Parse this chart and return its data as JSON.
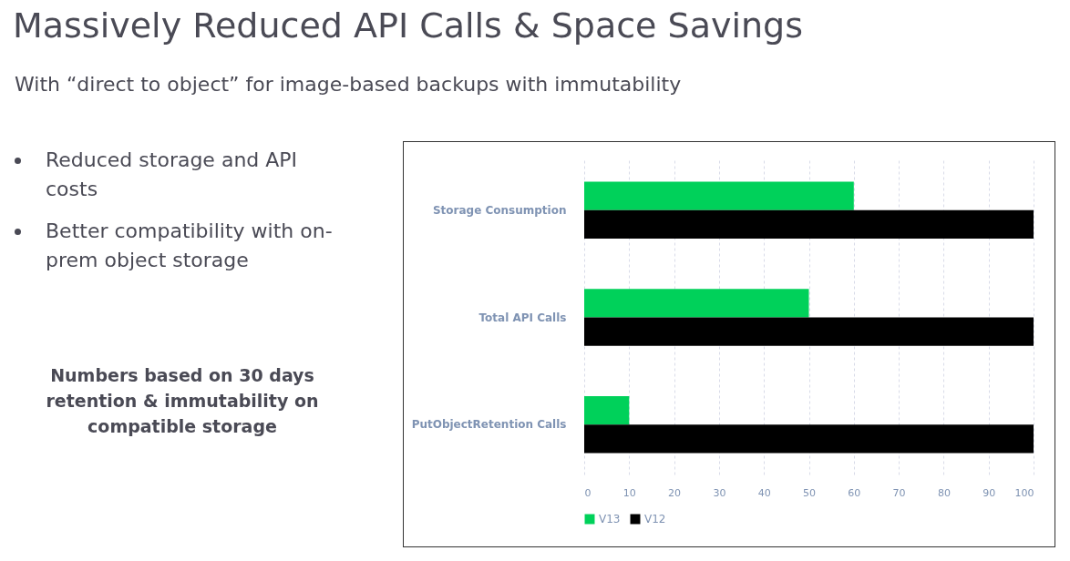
{
  "chart_data": {
    "type": "bar",
    "orientation": "horizontal",
    "title": "Massively Reduced API Calls & Space Savings",
    "subtitle": "With “direct to object” for image-based backups with immutability",
    "annotations": [
      "Reduced storage and API costs",
      "Better compatibility with on-prem object storage",
      "Numbers based on 30 days retention &  immutability on compatible storage"
    ],
    "categories": [
      "Storage Consumption",
      "Total API Calls",
      "PutObjectRetention Calls"
    ],
    "series": [
      {
        "name": "V13",
        "color": "#00d15a",
        "values": [
          60,
          50,
          10
        ]
      },
      {
        "name": "V12",
        "color": "#000000",
        "values": [
          100,
          100,
          100
        ]
      }
    ],
    "xlim": [
      0,
      100
    ],
    "xticks": [
      0,
      10,
      20,
      30,
      40,
      50,
      60,
      70,
      80,
      90,
      100
    ],
    "grid": "x",
    "legend": "bottom"
  }
}
